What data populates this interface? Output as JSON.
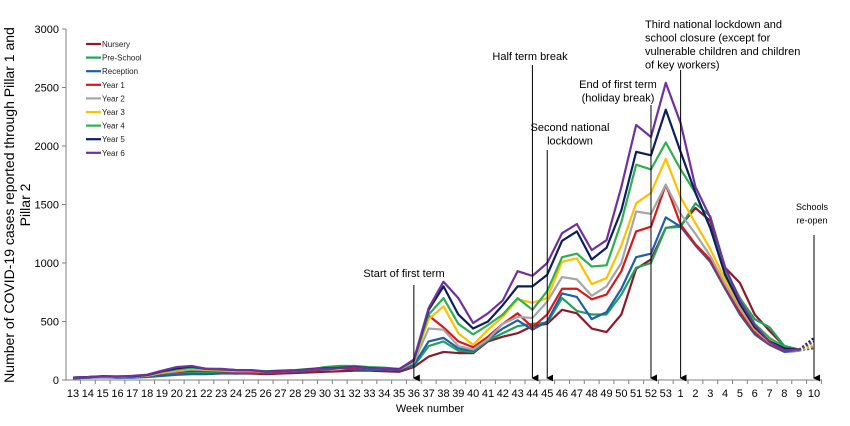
{
  "chart_data": {
    "type": "line",
    "title": "",
    "xlabel": "Week number",
    "ylabel": "Number of COVID-19 cases reported through Pillar 1 and Pillar 2",
    "ylabel_lines": [
      "Number of COVID-19 cases reported through Pillar 1 and",
      "Pillar 2"
    ],
    "ylim": [
      0,
      3000
    ],
    "yticks": [
      0,
      500,
      1000,
      1500,
      2000,
      2500,
      3000
    ],
    "grid": false,
    "legend_position": "top-left",
    "categories": [
      "13",
      "14",
      "15",
      "16",
      "17",
      "18",
      "19",
      "20",
      "21",
      "22",
      "23",
      "24",
      "25",
      "26",
      "27",
      "28",
      "29",
      "30",
      "31",
      "32",
      "33",
      "34",
      "35",
      "36",
      "37",
      "38",
      "39",
      "40",
      "41",
      "42",
      "43",
      "44",
      "45",
      "46",
      "47",
      "48",
      "49",
      "50",
      "51",
      "52",
      "53",
      "1",
      "2",
      "3",
      "4",
      "5",
      "6",
      "7",
      "8",
      "9",
      "10"
    ],
    "last_segment_style": "dotted",
    "series": [
      {
        "name": "Nursery",
        "color": "#8B1A2B",
        "values": [
          15,
          20,
          25,
          20,
          25,
          30,
          45,
          60,
          70,
          65,
          60,
          55,
          55,
          50,
          55,
          60,
          65,
          70,
          75,
          80,
          80,
          75,
          70,
          110,
          200,
          240,
          230,
          230,
          330,
          370,
          400,
          460,
          480,
          600,
          570,
          440,
          410,
          560,
          950,
          1030,
          1300,
          1320,
          1470,
          1360,
          960,
          830,
          560,
          420,
          290,
          260,
          280
        ]
      },
      {
        "name": "Pre-School",
        "color": "#1FA35A",
        "values": [
          15,
          20,
          25,
          25,
          25,
          30,
          40,
          50,
          60,
          60,
          65,
          65,
          70,
          70,
          75,
          80,
          90,
          110,
          120,
          120,
          110,
          105,
          95,
          120,
          290,
          330,
          250,
          240,
          340,
          400,
          460,
          480,
          490,
          700,
          590,
          560,
          560,
          730,
          960,
          1000,
          1300,
          1310,
          1510,
          1400,
          950,
          700,
          520,
          450,
          290,
          255,
          270
        ]
      },
      {
        "name": "Reception",
        "color": "#1F5FA8",
        "values": [
          15,
          20,
          25,
          20,
          20,
          25,
          35,
          45,
          50,
          50,
          55,
          55,
          60,
          60,
          65,
          70,
          80,
          90,
          100,
          90,
          85,
          90,
          85,
          130,
          330,
          360,
          270,
          250,
          350,
          440,
          510,
          430,
          500,
          740,
          710,
          520,
          580,
          780,
          1050,
          1080,
          1390,
          1310,
          1150,
          1010,
          780,
          560,
          390,
          300,
          240,
          250,
          280
        ]
      },
      {
        "name": "Year 1",
        "color": "#D7191C",
        "values": [
          20,
          25,
          30,
          25,
          30,
          35,
          55,
          70,
          85,
          80,
          75,
          70,
          70,
          65,
          70,
          75,
          85,
          95,
          100,
          105,
          100,
          95,
          90,
          150,
          550,
          450,
          330,
          280,
          370,
          480,
          570,
          450,
          560,
          780,
          780,
          690,
          730,
          930,
          1270,
          1310,
          1670,
          1330,
          1160,
          1030,
          800,
          580,
          410,
          310,
          250,
          255,
          280
        ]
      },
      {
        "name": "Year 2",
        "color": "#A6A6A6",
        "values": [
          20,
          25,
          30,
          25,
          30,
          35,
          60,
          75,
          90,
          85,
          80,
          75,
          75,
          70,
          75,
          80,
          90,
          100,
          105,
          110,
          100,
          95,
          90,
          150,
          440,
          430,
          290,
          260,
          350,
          480,
          540,
          530,
          670,
          880,
          860,
          720,
          800,
          1000,
          1440,
          1420,
          1670,
          1420,
          1250,
          1060,
          820,
          610,
          430,
          320,
          260,
          250,
          290
        ]
      },
      {
        "name": "Year 3",
        "color": "#FFC000",
        "values": [
          20,
          25,
          30,
          28,
          30,
          38,
          65,
          85,
          100,
          90,
          85,
          80,
          80,
          72,
          78,
          82,
          92,
          102,
          108,
          112,
          102,
          97,
          92,
          160,
          520,
          630,
          400,
          300,
          430,
          540,
          690,
          660,
          700,
          1010,
          1040,
          820,
          870,
          1150,
          1510,
          1600,
          1890,
          1560,
          1340,
          1120,
          860,
          640,
          440,
          340,
          270,
          260,
          300
        ]
      },
      {
        "name": "Year 4",
        "color": "#2DB04F",
        "values": [
          20,
          25,
          32,
          28,
          32,
          40,
          70,
          90,
          105,
          95,
          90,
          85,
          82,
          75,
          80,
          85,
          95,
          105,
          110,
          115,
          105,
          98,
          92,
          165,
          560,
          700,
          480,
          390,
          470,
          560,
          700,
          600,
          760,
          1050,
          1080,
          970,
          980,
          1350,
          1840,
          1800,
          2030,
          1800,
          1600,
          1300,
          920,
          700,
          480,
          360,
          280,
          255,
          330
        ]
      },
      {
        "name": "Year 5",
        "color": "#0A1F5C",
        "values": [
          20,
          25,
          32,
          30,
          32,
          42,
          75,
          100,
          115,
          95,
          92,
          85,
          85,
          72,
          78,
          82,
          92,
          102,
          104,
          112,
          102,
          97,
          92,
          170,
          600,
          800,
          560,
          440,
          500,
          640,
          800,
          800,
          900,
          1190,
          1270,
          1030,
          1130,
          1450,
          1950,
          1920,
          2310,
          1950,
          1600,
          1300,
          900,
          650,
          450,
          330,
          270,
          260,
          360
        ]
      },
      {
        "name": "Year 6",
        "color": "#7030A0",
        "values": [
          20,
          25,
          30,
          30,
          35,
          45,
          80,
          110,
          120,
          95,
          95,
          85,
          85,
          70,
          75,
          80,
          90,
          100,
          100,
          110,
          100,
          95,
          90,
          175,
          615,
          840,
          700,
          487,
          570,
          680,
          930,
          890,
          1000,
          1255,
          1333,
          1110,
          1195,
          1650,
          2180,
          2077,
          2540,
          2195,
          1650,
          1390,
          965,
          680,
          470,
          325,
          255,
          260,
          330
        ]
      }
    ],
    "annotations": [
      {
        "week": "36",
        "lines": [
          "Start of first term"
        ]
      },
      {
        "week": "44",
        "lines": [
          "Half term break"
        ]
      },
      {
        "week": "45",
        "lines": [
          "Second national",
          "lockdown"
        ]
      },
      {
        "week": "52",
        "lines": [
          "End of first term",
          "(holiday break)"
        ]
      },
      {
        "week": "1",
        "lines": [
          "Third national lockdown and",
          "school closure (except for",
          "vulnerable children and children",
          "of key workers)"
        ]
      },
      {
        "week": "10",
        "lines": [
          "Schools",
          "re-open"
        ]
      }
    ]
  }
}
